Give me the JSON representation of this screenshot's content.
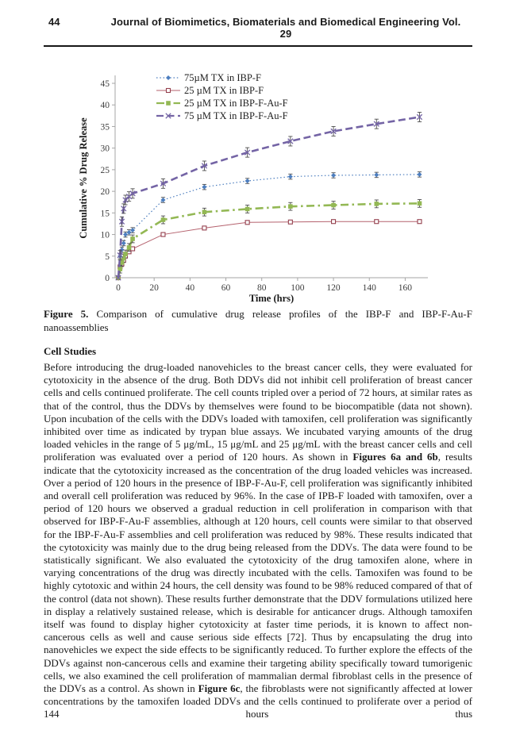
{
  "header": {
    "page_number": "44",
    "journal_title": "Journal of Biomimetics, Biomaterials and Biomedical Engineering Vol. 29"
  },
  "figure": {
    "caption_segments": [
      {
        "t": "Figure 5.",
        "b": true
      },
      {
        "t": " Comparison of cumulative drug release profiles of the IBP-F and IBP-F-Au-F nanoassemblies",
        "b": false
      }
    ]
  },
  "section": {
    "heading": "Cell Studies",
    "paragraph_segments": [
      {
        "t": "Before introducing the drug-loaded nanovehicles to the breast cancer cells, they were evaluated for cytotoxicity in the absence of the drug. Both DDVs did not inhibit cell proliferation of breast cancer cells and cells continued proliferate. The cell counts tripled over a period of 72 hours, at similar rates as that of the control, thus the DDVs by themselves were found to be biocompatible (data not shown). Upon incubation of the cells with the DDVs loaded with tamoxifen, cell proliferation was significantly inhibited over time as indicated by trypan blue assays. We incubated varying amounts of the drug loaded vehicles in the range of 5 μg/mL, 15 μg/mL and 25 μg/mL with the breast cancer cells and cell proliferation was evaluated over a period of 120 hours. As shown in ",
        "b": false
      },
      {
        "t": "Figures 6a and 6b",
        "b": true
      },
      {
        "t": ", results indicate that the cytotoxicity increased as the concentration of the drug loaded vehicles was increased. Over a period of 120 hours in the presence of IBP-F-Au-F, cell proliferation was significantly inhibited and overall cell proliferation was reduced by 96%. In the case of IPB-F loaded with tamoxifen, over a period of 120 hours we observed a gradual reduction in cell proliferation in comparison with that observed for IBP-F-Au-F assemblies, although at 120 hours, cell counts were similar to that observed for the IBP-F-Au-F assemblies and cell proliferation was reduced by 98%. These results indicated that the cytotoxicity was mainly due to the drug being released from the DDVs. The data were found to be statistically significant. We also evaluated the cytotoxicity of the drug tamoxifen alone, where in varying concentrations of the drug was directly incubated with the cells. Tamoxifen was found to be highly cytotoxic and within 24 hours, the cell density was found to be 98% reduced compared of that of the control (data not shown). These results further demonstrate that the DDV formulations utilized here in display a relatively sustained release, which is desirable for anticancer drugs. Although tamoxifen itself was found to display higher cytotoxicity at faster time periods, it is known to affect non-cancerous cells as well and cause serious side effects [72]. Thus by encapsulating the drug into nanovehicles we expect the side effects to be significantly reduced. To further explore the effects of the DDVs against non-cancerous cells and examine their targeting ability specifically toward tumorigenic cells, we also examined the cell proliferation of mammalian dermal fibroblast cells in the presence of the DDVs as a control. As shown in ",
        "b": false
      },
      {
        "t": "Figure 6c",
        "b": true
      },
      {
        "t": ", the fibroblasts were not significantly affected at lower concentrations by the tamoxifen loaded DDVs and the cells continued to proliferate over a period of 144 hours thus",
        "b": false
      }
    ]
  },
  "chart_data": {
    "type": "line",
    "title": "",
    "xlabel": "Time (hrs)",
    "ylabel": "Cumulative % Drug Release",
    "xlim": [
      0,
      170
    ],
    "ylim": [
      0,
      45
    ],
    "xticks": [
      0,
      20,
      40,
      60,
      80,
      100,
      120,
      140,
      160
    ],
    "yticks": [
      0,
      5,
      10,
      15,
      20,
      25,
      30,
      35,
      40,
      45
    ],
    "grid": false,
    "legend_position": "top-inside",
    "axis_color": "#a6a6a6",
    "tick_label_color": "#3d3d3d",
    "error_bar_color": "#4d4d4d",
    "x": [
      0,
      1,
      2,
      3,
      4,
      6,
      8,
      25,
      48,
      72,
      96,
      120,
      144,
      168
    ],
    "series": [
      {
        "name": "75µM TX in IBP-F",
        "color": "#4d7ebf",
        "line": "dotted",
        "marker": "diamond",
        "err": 0.6,
        "values": [
          0,
          5,
          6.5,
          8,
          10,
          10.5,
          11,
          18,
          21,
          22.4,
          23.4,
          23.7,
          23.8,
          23.9
        ]
      },
      {
        "name": "25 µM TX in IBP-F",
        "color": "#b5626e",
        "marker_stroke": "#94404e",
        "line": "solid",
        "marker": "open-square",
        "err": 0.4,
        "values": [
          0,
          2.5,
          3.2,
          4,
          5,
          6,
          6.7,
          10,
          11.5,
          12.8,
          12.9,
          13,
          13,
          13
        ]
      },
      {
        "name": "25 µM TX in IBP-F-Au-F",
        "color": "#93b854",
        "line": "dashdot",
        "marker": "square",
        "err": 0.9,
        "values": [
          0,
          2,
          3.5,
          4.5,
          5.5,
          7,
          9,
          13.4,
          15.2,
          15.9,
          16.5,
          16.8,
          17.1,
          17.2
        ]
      },
      {
        "name": "75 µM TX in IBP-F-Au-F",
        "color": "#7464a5",
        "line": "dashed",
        "marker": "cross",
        "err": 1.1,
        "values": [
          0,
          5.2,
          13,
          16,
          18,
          18.8,
          19.5,
          21.8,
          25.9,
          29,
          31.6,
          33.9,
          35.6,
          37.2
        ]
      }
    ]
  }
}
